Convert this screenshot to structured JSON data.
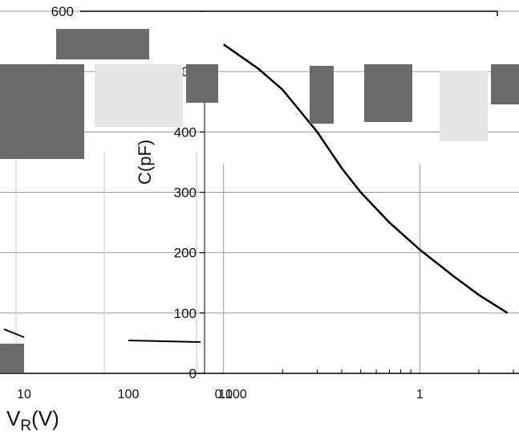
{
  "chart_data": {
    "type": "line",
    "title": "",
    "xlabel_main": "V",
    "xlabel_sub": "R",
    "xlabel_unit": "(V)",
    "ylabel": "C(pF)",
    "xscale": "log",
    "xlim": [
      0.08,
      3
    ],
    "ylim": [
      0,
      600
    ],
    "grid": true,
    "legend": "none",
    "y_ticks": [
      "0",
      "100",
      "200",
      "300",
      "400",
      "500",
      "600"
    ],
    "x_ticks": [
      "0.1",
      "1"
    ],
    "extra_x_tick_labels": [
      "10",
      "100",
      "1000"
    ],
    "series": [
      {
        "x": [
          0.1,
          0.15,
          0.2,
          0.3,
          0.4,
          0.5,
          0.7,
          1.0,
          1.5,
          2.0,
          2.8
        ],
        "values": [
          545,
          505,
          470,
          400,
          340,
          300,
          250,
          205,
          160,
          130,
          100
        ]
      }
    ],
    "colors": {
      "line": "#000000",
      "grid": "#9a9a9a",
      "axis": "#000000",
      "artifact": "#6b6b6b"
    }
  }
}
